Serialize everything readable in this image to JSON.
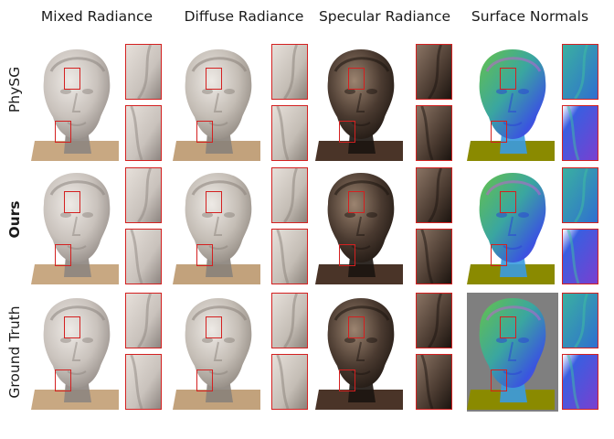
{
  "columns": [
    "Mixed Radiance",
    "Diffuse Radiance",
    "Specular Radiance",
    "Surface Normals"
  ],
  "rows": [
    "PhySG",
    "Ours",
    "Ground Truth"
  ],
  "colors": {
    "inset_box": "#d42020",
    "mixed": {
      "bg": "#ffffff",
      "base": "#c8a882",
      "head": "#c9c2bc",
      "shade": "#8d8580"
    },
    "diffuse": {
      "bg": "#ffffff",
      "base": "#c2a27c",
      "head": "#c4bdb5",
      "shade": "#8a827a"
    },
    "specular": {
      "bg": "#ffffff",
      "base": "#4a3428",
      "head": "#4a3a30",
      "shade": "#1b140f"
    },
    "normals": {
      "bg": "#ffffff",
      "base": "#8a8a00",
      "head": "#3fa77e",
      "shade": "#2a3fd6"
    },
    "normals_gt_bg": "#7f7f7f"
  }
}
